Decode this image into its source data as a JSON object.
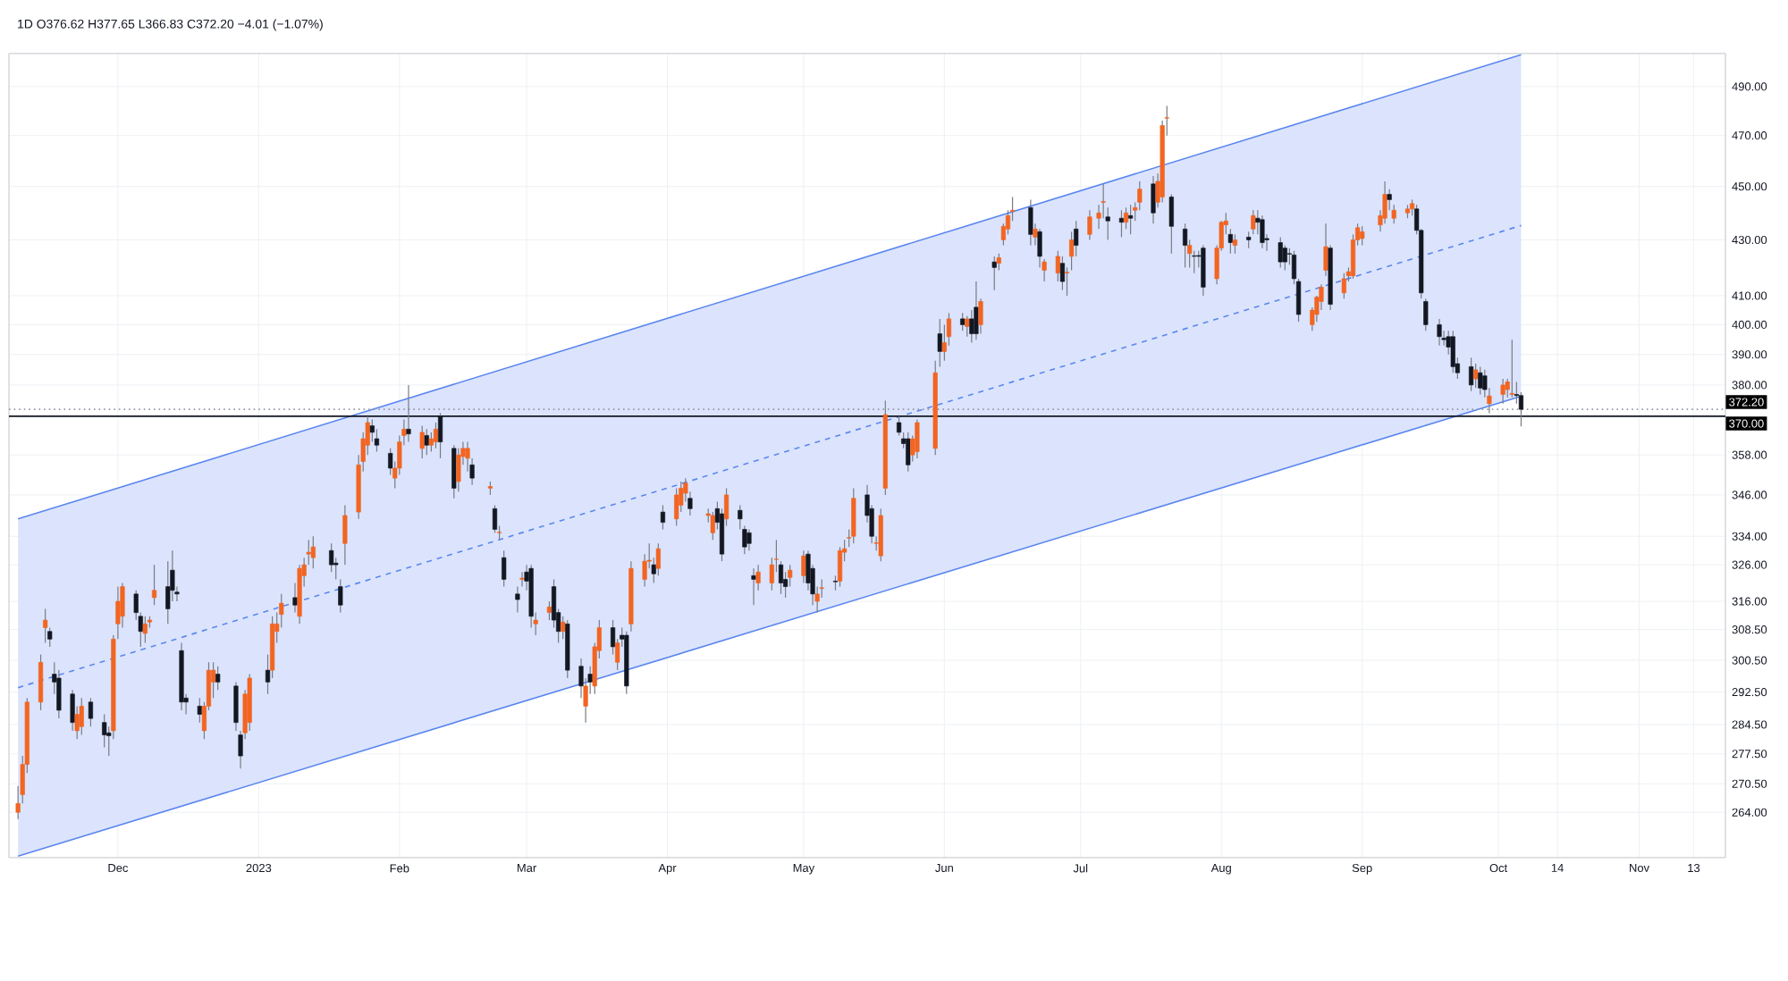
{
  "chart_data": {
    "type": "candlestick",
    "title": "1D O376.62 H377.65 L366.83 C372.20 −4.01 (−1.07%)",
    "log": "y",
    "grid": true,
    "colors": [
      "#f26522",
      "#f26522",
      "#f26522",
      "#f26522",
      "#f26522",
      "#131722",
      "#131722",
      "#131722",
      "#131722",
      "#f26522",
      "#f26522",
      "#131722",
      "#131722",
      "#131722",
      "#f26522",
      "#f26522",
      "#f26522",
      "#131722",
      "#131722",
      "#f26522",
      "#f26522",
      "#f26522",
      "#131722",
      "#131722",
      "#131722",
      "#131722",
      "#131722",
      "#131722",
      "#f26522",
      "#f26522",
      "#f26522",
      "#131722",
      "#131722",
      "#131722",
      "#f26522",
      "#f26522",
      "#131722",
      "#f26522",
      "#f26522",
      "#f26522",
      "#131722",
      "#f26522",
      "#f26522",
      "#f26522",
      "#f26522",
      "#131722",
      "#131722",
      "#131722",
      "#f26522",
      "#f26522",
      "#f26522",
      "#f26522",
      "#131722",
      "#131722",
      "#131722",
      "#f26522",
      "#f26522",
      "#f26522",
      "#131722",
      "#f26522",
      "#131722",
      "#f26522",
      "#f26522",
      "#131722",
      "#131722",
      "#f26522",
      "#f26522",
      "#f26522",
      "#131722",
      "#f26522",
      "#131722",
      "#f26522",
      "#131722",
      "#131722",
      "#f26522",
      "#131722",
      "#131722",
      "#f26522",
      "#f26522",
      "#131722",
      "#131722",
      "#f26522",
      "#131722",
      "#131722",
      "#f26522",
      "#131722",
      "#f26522",
      "#f26522",
      "#131722",
      "#f26522",
      "#131722",
      "#131722",
      "#f26522",
      "#f26522",
      "#f26522",
      "#131722",
      "#f26522",
      "#131722",
      "#f26522",
      "#f26522",
      "#f26522",
      "#131722",
      "#f26522",
      "#f26522",
      "#131722",
      "#131722",
      "#f26522",
      "#131722",
      "#131722",
      "#131722",
      "#131722",
      "#f26522",
      "#f26522",
      "#f26522",
      "#131722",
      "#131722",
      "#f26522",
      "#f26522",
      "#131722",
      "#131722",
      "#f26522",
      "#f26522",
      "#131722",
      "#f26522",
      "#f26522",
      "#f26522",
      "#f26522",
      "#131722",
      "#131722",
      "#f26522",
      "#f26522",
      "#f26522",
      "#131722",
      "#131722",
      "#131722",
      "#f26522",
      "#f26522",
      "#f26522",
      "#131722",
      "#f26522",
      "#f26522",
      "#131722",
      "#f26522",
      "#131722",
      "#131722",
      "#f26522",
      "#131722",
      "#f26522",
      "#f26522",
      "#f26522",
      "#f26522",
      "#131722",
      "#f26522",
      "#131722",
      "#f26522",
      "#f26522",
      "#131722",
      "#f26522",
      "#f26522",
      "#131722",
      "#f26522",
      "#f26522",
      "#f26522",
      "#131722",
      "#131722",
      "#f26522",
      "#131722",
      "#f26522",
      "#f26522",
      "#131722",
      "#f26522",
      "#f26522",
      "#f26522",
      "#131722",
      "#131722",
      "#f26522",
      "#131722",
      "#131722",
      "#131722",
      "#f26522",
      "#f26522",
      "#f26522",
      "#131722",
      "#f26522",
      "#131722",
      "#f26522",
      "#131722",
      "#131722",
      "#131722",
      "#131722",
      "#131722",
      "#131722",
      "#131722",
      "#131722",
      "#f26522",
      "#f26522",
      "#f26522",
      "#f26522",
      "#131722",
      "#f26522",
      "#f26522",
      "#f26522",
      "#f26522",
      "#f26522",
      "#f26522",
      "#f26522",
      "#131722",
      "#f26522",
      "#f26522",
      "#f26522",
      "#131722",
      "#131722",
      "#131722",
      "#131722",
      "#131722",
      "#131722",
      "#131722",
      "#131722",
      "#131722",
      "#f26522",
      "#131722",
      "#131722",
      "#f26522",
      "#f26522",
      "#f26522",
      "#f26522",
      "#131722",
      "#131722"
    ],
    "x": [
      "2022-11-09",
      "2022-11-10",
      "2022-11-11",
      "2022-11-14",
      "2022-11-15",
      "2022-11-16",
      "2022-11-17",
      "2022-11-18",
      "2022-11-21",
      "2022-11-22",
      "2022-11-23",
      "2022-11-25",
      "2022-11-28",
      "2022-11-29",
      "2022-11-30",
      "2022-12-01",
      "2022-12-02",
      "2022-12-05",
      "2022-12-06",
      "2022-12-07",
      "2022-12-08",
      "2022-12-09",
      "2022-12-12",
      "2022-12-13",
      "2022-12-14",
      "2022-12-15",
      "2022-12-16",
      "2022-12-19",
      "2022-12-20",
      "2022-12-21",
      "2022-12-22",
      "2022-12-23",
      "2022-12-27",
      "2022-12-28",
      "2022-12-29",
      "2022-12-30",
      "2023-01-03",
      "2023-01-04",
      "2023-01-05",
      "2023-01-06",
      "2023-01-09",
      "2023-01-10",
      "2023-01-11",
      "2023-01-12",
      "2023-01-13",
      "2023-01-17",
      "2023-01-18",
      "2023-01-19",
      "2023-01-20",
      "2023-01-23",
      "2023-01-24",
      "2023-01-25",
      "2023-01-26",
      "2023-01-27",
      "2023-01-30",
      "2023-01-31",
      "2023-02-01",
      "2023-02-02",
      "2023-02-03",
      "2023-02-06",
      "2023-02-07",
      "2023-02-08",
      "2023-02-09",
      "2023-02-10",
      "2023-02-13",
      "2023-02-14",
      "2023-02-15",
      "2023-02-16",
      "2023-02-17",
      "2023-02-21",
      "2023-02-22",
      "2023-02-23",
      "2023-02-24",
      "2023-02-27",
      "2023-02-28",
      "2023-03-01",
      "2023-03-02",
      "2023-03-03",
      "2023-03-06",
      "2023-03-07",
      "2023-03-08",
      "2023-03-09",
      "2023-03-10",
      "2023-03-13",
      "2023-03-14",
      "2023-03-15",
      "2023-03-16",
      "2023-03-17",
      "2023-03-20",
      "2023-03-21",
      "2023-03-22",
      "2023-03-23",
      "2023-03-24",
      "2023-03-27",
      "2023-03-28",
      "2023-03-29",
      "2023-03-30",
      "2023-03-31",
      "2023-04-03",
      "2023-04-04",
      "2023-04-05",
      "2023-04-06",
      "2023-04-10",
      "2023-04-11",
      "2023-04-12",
      "2023-04-13",
      "2023-04-14",
      "2023-04-17",
      "2023-04-18",
      "2023-04-19",
      "2023-04-20",
      "2023-04-21",
      "2023-04-24",
      "2023-04-25",
      "2023-04-26",
      "2023-04-27",
      "2023-04-28",
      "2023-05-01",
      "2023-05-02",
      "2023-05-03",
      "2023-05-04",
      "2023-05-05",
      "2023-05-08",
      "2023-05-09",
      "2023-05-10",
      "2023-05-11",
      "2023-05-12",
      "2023-05-15",
      "2023-05-16",
      "2023-05-17",
      "2023-05-18",
      "2023-05-19",
      "2023-05-22",
      "2023-05-23",
      "2023-05-24",
      "2023-05-25",
      "2023-05-26",
      "2023-05-30",
      "2023-05-31",
      "2023-06-01",
      "2023-06-02",
      "2023-06-05",
      "2023-06-06",
      "2023-06-07",
      "2023-06-08",
      "2023-06-09",
      "2023-06-12",
      "2023-06-13",
      "2023-06-14",
      "2023-06-15",
      "2023-06-16",
      "2023-06-20",
      "2023-06-21",
      "2023-06-22",
      "2023-06-23",
      "2023-06-26",
      "2023-06-27",
      "2023-06-28",
      "2023-06-29",
      "2023-06-30",
      "2023-07-03",
      "2023-07-05",
      "2023-07-06",
      "2023-07-07",
      "2023-07-10",
      "2023-07-11",
      "2023-07-12",
      "2023-07-13",
      "2023-07-14",
      "2023-07-17",
      "2023-07-18",
      "2023-07-19",
      "2023-07-20",
      "2023-07-21",
      "2023-07-24",
      "2023-07-25",
      "2023-07-26",
      "2023-07-27",
      "2023-07-28",
      "2023-07-31",
      "2023-08-01",
      "2023-08-02",
      "2023-08-03",
      "2023-08-04",
      "2023-08-07",
      "2023-08-08",
      "2023-08-09",
      "2023-08-10",
      "2023-08-11",
      "2023-08-14",
      "2023-08-15",
      "2023-08-16",
      "2023-08-17",
      "2023-08-18",
      "2023-08-21",
      "2023-08-22",
      "2023-08-23",
      "2023-08-24",
      "2023-08-25",
      "2023-08-28",
      "2023-08-29",
      "2023-08-30",
      "2023-08-31",
      "2023-09-01",
      "2023-09-05",
      "2023-09-06",
      "2023-09-07",
      "2023-09-08",
      "2023-09-11",
      "2023-09-12",
      "2023-09-13",
      "2023-09-14",
      "2023-09-15",
      "2023-09-18",
      "2023-09-19",
      "2023-09-20",
      "2023-09-21",
      "2023-09-22",
      "2023-09-25",
      "2023-09-26",
      "2023-09-27",
      "2023-09-28",
      "2023-09-29",
      "2023-10-02",
      "2023-10-03",
      "2023-10-04",
      "2023-10-05",
      "2023-10-06"
    ],
    "ohlc": [
      [
        264,
        270,
        262.5,
        266
      ],
      [
        268,
        277,
        266,
        275
      ],
      [
        275,
        291,
        273,
        290
      ],
      [
        290,
        302,
        288,
        300
      ],
      [
        309,
        314,
        305,
        311
      ],
      [
        308,
        309,
        304,
        306
      ],
      [
        297,
        300,
        292,
        295
      ],
      [
        296,
        298,
        286,
        288
      ],
      [
        292,
        293,
        283,
        285
      ],
      [
        283,
        289,
        281,
        287
      ],
      [
        284,
        291,
        282,
        289
      ],
      [
        290,
        291,
        284,
        286
      ],
      [
        285,
        287,
        279,
        282
      ],
      [
        282.5,
        284,
        277,
        281.8
      ],
      [
        283,
        307,
        281,
        306
      ],
      [
        310,
        320,
        306,
        316
      ],
      [
        312,
        321,
        309,
        320
      ],
      [
        318,
        319,
        311,
        313
      ],
      [
        312,
        313,
        304,
        308
      ],
      [
        307.5,
        312,
        305,
        310
      ],
      [
        310.5,
        312,
        309,
        311
      ],
      [
        317,
        326,
        315,
        319
      ],
      [
        320,
        327,
        310,
        314
      ],
      [
        324.5,
        330,
        316,
        319
      ],
      [
        318.5,
        320,
        316,
        318
      ],
      [
        303,
        305,
        288,
        290
      ],
      [
        291,
        292,
        287,
        290
      ],
      [
        289,
        291,
        285,
        287
      ],
      [
        283,
        290,
        281,
        289
      ],
      [
        289,
        300,
        288,
        298
      ],
      [
        295,
        300,
        291,
        298
      ],
      [
        297,
        299,
        293,
        295
      ],
      [
        294,
        295,
        283,
        285
      ],
      [
        282,
        283,
        274,
        277
      ],
      [
        282.5,
        293,
        281,
        292
      ],
      [
        285,
        297,
        283,
        296
      ],
      [
        298,
        302,
        292,
        295
      ],
      [
        298,
        312,
        296,
        310
      ],
      [
        308,
        313,
        305,
        310
      ],
      [
        312.5,
        318,
        309,
        315.5
      ],
      [
        317,
        321,
        313,
        315
      ],
      [
        312,
        326,
        310,
        325
      ],
      [
        323,
        328,
        320,
        326
      ],
      [
        329,
        333,
        326,
        329.5
      ],
      [
        328,
        334,
        325,
        331
      ],
      [
        330,
        332,
        324,
        326
      ],
      [
        326.5,
        328,
        322,
        326
      ],
      [
        320,
        322,
        313,
        315
      ],
      [
        332,
        343,
        326,
        340
      ],
      [
        341,
        358,
        339,
        355
      ],
      [
        356,
        365,
        353,
        363
      ],
      [
        361,
        370,
        358,
        368
      ],
      [
        367,
        369,
        362,
        365
      ],
      [
        363,
        366,
        359,
        361
      ],
      [
        358.5,
        360,
        352,
        354
      ],
      [
        351,
        356,
        348,
        354
      ],
      [
        354,
        364,
        352,
        362
      ],
      [
        364,
        369,
        361,
        366
      ],
      [
        366,
        380,
        362,
        364.5
      ],
      [
        360,
        367,
        357,
        365
      ],
      [
        364,
        366,
        358,
        361
      ],
      [
        361,
        365,
        359,
        363
      ],
      [
        362,
        368,
        360,
        366
      ],
      [
        370,
        371,
        357,
        362
      ],
      [
        360,
        361,
        345,
        348
      ],
      [
        350,
        360,
        347,
        358
      ],
      [
        357.5,
        362,
        355,
        360
      ],
      [
        357,
        362,
        353,
        360
      ],
      [
        355,
        357,
        349,
        351
      ],
      [
        348,
        350,
        346,
        348.5
      ],
      [
        342,
        343,
        335,
        336
      ],
      [
        335,
        337,
        333,
        335.2
      ],
      [
        328,
        330,
        320,
        322
      ],
      [
        318,
        320,
        313,
        316.5
      ],
      [
        322,
        324,
        320,
        322.3
      ],
      [
        324,
        326,
        319,
        321.5
      ],
      [
        325,
        326,
        309,
        312
      ],
      [
        310,
        313,
        307,
        311
      ],
      [
        313,
        316,
        311,
        314.5
      ],
      [
        320,
        322,
        309,
        311
      ],
      [
        313,
        314,
        305,
        308
      ],
      [
        308,
        312,
        306,
        310.5
      ],
      [
        310,
        311,
        296,
        298
      ],
      [
        299,
        301,
        291,
        294
      ],
      [
        289,
        296,
        285,
        294
      ],
      [
        297,
        299,
        292,
        295
      ],
      [
        294,
        305,
        292,
        304
      ],
      [
        303,
        311,
        301,
        309
      ],
      [
        309,
        311,
        302,
        304
      ],
      [
        300,
        306,
        298,
        305
      ],
      [
        307,
        309,
        304,
        306
      ],
      [
        307,
        308,
        292,
        294
      ],
      [
        310,
        327,
        308,
        325
      ],
      [
        322,
        329,
        320,
        327
      ],
      [
        327,
        332,
        325,
        327.3
      ],
      [
        326,
        328,
        321,
        323.5
      ],
      [
        325,
        332,
        323,
        330.5
      ],
      [
        341,
        343,
        336,
        338
      ],
      [
        339,
        348,
        337,
        346
      ],
      [
        343,
        350,
        341,
        348
      ],
      [
        346.5,
        351,
        344,
        349.5
      ],
      [
        345,
        347,
        340,
        342
      ],
      [
        340,
        342,
        338,
        340.5
      ],
      [
        335,
        341,
        333,
        340
      ],
      [
        342,
        344,
        336,
        338
      ],
      [
        340.5,
        342,
        327,
        329
      ],
      [
        339,
        348,
        337,
        346
      ],
      [
        341.5,
        343,
        336,
        339
      ],
      [
        336,
        337,
        329,
        331
      ],
      [
        335,
        336,
        330,
        332
      ],
      [
        323,
        325,
        315,
        322
      ],
      [
        321,
        326,
        319,
        324
      ],
      [
        321,
        328,
        319,
        326
      ],
      [
        327.5,
        333,
        324,
        327.6
      ],
      [
        326,
        327,
        318,
        321
      ],
      [
        322,
        324,
        317,
        320
      ],
      [
        322.5,
        326,
        320,
        324.5
      ],
      [
        323,
        330,
        321,
        328.5
      ],
      [
        329,
        330,
        319,
        321
      ],
      [
        325,
        326,
        315,
        318
      ],
      [
        316,
        320,
        313,
        318
      ],
      [
        319.5,
        322,
        317,
        319.7
      ],
      [
        321.5,
        323,
        319,
        321.3
      ],
      [
        321.5,
        331,
        320,
        330
      ],
      [
        329.5,
        333,
        327,
        330.5
      ],
      [
        333.5,
        336,
        331,
        333.7
      ],
      [
        334,
        348,
        332,
        345
      ],
      [
        346,
        349,
        338,
        340
      ],
      [
        342,
        343,
        332,
        334
      ],
      [
        332,
        334,
        330,
        332.2
      ],
      [
        328.5,
        342,
        327,
        340
      ],
      [
        348,
        375,
        346,
        370.5
      ],
      [
        368,
        370,
        364,
        365
      ],
      [
        363,
        365,
        360,
        361.5
      ],
      [
        363,
        365,
        353,
        355
      ],
      [
        358,
        364,
        356,
        363
      ],
      [
        359,
        369,
        357,
        368
      ],
      [
        360,
        388,
        358,
        384
      ],
      [
        397,
        402,
        386,
        391
      ],
      [
        391,
        400,
        388,
        394
      ],
      [
        396,
        404,
        393,
        402
      ],
      [
        402,
        404,
        398,
        400
      ],
      [
        399.5,
        403,
        396,
        402
      ],
      [
        402,
        405,
        394,
        397
      ],
      [
        406,
        415,
        395,
        397
      ],
      [
        400,
        409,
        397,
        408
      ],
      [
        422,
        424,
        412,
        420
      ],
      [
        421.5,
        425,
        419,
        423.5
      ],
      [
        430,
        436,
        428,
        435
      ],
      [
        434,
        441,
        432,
        439
      ],
      [
        440.5,
        446,
        437,
        441
      ],
      [
        442,
        445,
        428,
        432
      ],
      [
        431,
        436,
        428,
        434
      ],
      [
        433,
        434,
        420,
        424
      ],
      [
        419,
        423,
        415,
        422
      ],
      [
        418,
        426,
        415,
        424
      ],
      [
        421.5,
        424,
        412,
        415
      ],
      [
        418,
        420,
        410,
        418.3
      ],
      [
        424,
        433,
        419,
        430
      ],
      [
        434,
        437,
        424,
        428
      ],
      [
        432,
        441,
        430,
        438.5
      ],
      [
        438,
        443,
        434,
        440
      ],
      [
        444,
        451,
        438,
        444.3
      ],
      [
        438.5,
        442,
        430,
        437
      ],
      [
        438,
        441,
        431,
        436.5
      ],
      [
        436.5,
        442,
        434,
        440
      ],
      [
        439,
        443,
        432,
        438
      ],
      [
        441,
        444,
        437,
        442
      ],
      [
        444,
        452,
        441,
        449
      ],
      [
        451,
        454,
        436,
        440
      ],
      [
        444,
        455,
        442,
        452
      ],
      [
        446,
        476,
        444,
        474
      ],
      [
        477,
        482,
        470,
        477.2
      ],
      [
        446,
        447,
        425,
        435
      ],
      [
        434,
        436,
        420,
        428
      ],
      [
        425,
        430,
        420,
        428
      ],
      [
        424.2,
        426,
        418,
        424
      ],
      [
        424.3,
        426,
        420,
        424
      ],
      [
        427,
        428,
        410,
        413
      ],
      [
        416,
        428,
        414,
        427
      ],
      [
        427,
        437,
        426,
        436.5
      ],
      [
        435.5,
        440,
        432,
        437
      ],
      [
        432,
        434,
        425,
        429
      ],
      [
        428,
        432,
        425,
        430
      ],
      [
        431,
        433,
        427,
        430
      ],
      [
        434,
        441,
        432,
        439
      ],
      [
        438,
        441,
        432,
        436.5
      ],
      [
        437.5,
        439,
        427,
        429
      ],
      [
        430.5,
        432,
        426,
        430
      ],
      [
        429,
        431,
        420,
        422
      ],
      [
        427,
        428,
        419,
        422
      ],
      [
        425,
        427,
        421,
        424.8
      ],
      [
        424.5,
        426,
        414,
        416
      ],
      [
        415,
        416,
        401,
        403.5
      ],
      [
        400,
        406,
        398,
        405
      ],
      [
        403.5,
        410,
        401,
        409.5
      ],
      [
        408,
        414,
        405,
        413
      ],
      [
        419,
        436,
        417,
        427.5
      ],
      [
        427,
        428,
        405,
        407
      ],
      [
        411,
        418,
        409,
        416
      ],
      [
        417,
        420,
        415,
        418.5
      ],
      [
        417,
        432,
        416,
        430
      ],
      [
        430,
        436,
        428,
        434.5
      ],
      [
        430.5,
        435,
        428,
        433
      ],
      [
        435.5,
        441,
        433,
        439
      ],
      [
        438,
        452,
        436,
        447
      ],
      [
        447,
        449,
        441,
        445
      ],
      [
        438,
        443,
        436,
        441
      ],
      [
        440,
        443,
        438,
        441.5
      ],
      [
        441.5,
        445,
        439,
        443.5
      ],
      [
        441.5,
        443,
        432,
        433.5
      ],
      [
        433.5,
        434,
        409,
        411
      ],
      [
        408,
        409,
        398,
        400
      ],
      [
        400,
        402,
        393,
        396
      ],
      [
        395.5,
        398,
        393,
        395
      ],
      [
        396,
        398,
        390,
        392.5
      ],
      [
        396,
        398,
        384,
        386
      ],
      [
        387,
        389,
        382,
        384
      ],
      [
        386,
        389,
        378,
        380
      ],
      [
        382,
        387,
        379,
        385
      ],
      [
        384,
        386,
        377,
        379
      ],
      [
        383,
        385,
        376,
        378.5
      ],
      [
        374,
        379,
        371,
        376.5
      ],
      [
        377,
        382,
        374,
        380
      ],
      [
        378.5,
        382,
        376,
        381
      ],
      [
        377,
        395,
        376,
        377.3
      ],
      [
        377,
        381,
        374,
        376.6
      ],
      [
        376.62,
        377.65,
        366.83,
        372.2
      ]
    ],
    "series": [
      {
        "type": "line",
        "color": "#5b86f0",
        "line_style": "dashed",
        "x": [
          "2022-11-09",
          "2023-10-06"
        ],
        "values": [
          293.6,
          435.3
        ],
        "lower": [
          254.3,
          376.4
        ],
        "upper": [
          339,
          503.5
        ]
      },
      {
        "type": "line",
        "color": "#5b86f0",
        "line_style": "solid",
        "x": [
          "2022-11-09",
          "2023-10-06"
        ],
        "values": [
          339,
          503.5
        ]
      },
      {
        "type": "line",
        "color": "#5b86f0",
        "line_style": "solid",
        "x": [
          "2022-11-09",
          "2023-10-06"
        ],
        "values": [
          254.3,
          376.4
        ]
      }
    ],
    "ref_lines": [
      {
        "axis": "y",
        "value": 372.2,
        "label": "372.20",
        "color": "#9598a1",
        "line_style": "dotted"
      },
      {
        "axis": "y",
        "value": 370,
        "label": "370.00",
        "color": "#131722",
        "line_style": "solid"
      }
    ],
    "xlim": [
      "2022-11-07",
      "2023-11-20"
    ],
    "ylim": [
      254,
      504
    ],
    "xticks": [
      {
        "value": "2022-12-01",
        "label": "Dec"
      },
      {
        "value": "2023-01-01",
        "label": "2023"
      },
      {
        "value": "2023-02-01",
        "label": "Feb"
      },
      {
        "value": "2023-03-01",
        "label": "Mar"
      },
      {
        "value": "2023-04-01",
        "label": "Apr"
      },
      {
        "value": "2023-05-01",
        "label": "May"
      },
      {
        "value": "2023-06-01",
        "label": "Jun"
      },
      {
        "value": "2023-07-01",
        "label": "Jul"
      },
      {
        "value": "2023-08-01",
        "label": "Aug"
      },
      {
        "value": "2023-09-01",
        "label": "Sep"
      },
      {
        "value": "2023-10-01",
        "label": "Oct"
      },
      {
        "value": "2023-10-14",
        "label": "14"
      },
      {
        "value": "2023-11-01",
        "label": "Nov"
      },
      {
        "value": "2023-11-13",
        "label": "13"
      }
    ],
    "yticks": [
      {
        "value": 490,
        "label": "490.00"
      },
      {
        "value": 470,
        "label": "470.00"
      },
      {
        "value": 450,
        "label": "450.00"
      },
      {
        "value": 430,
        "label": "430.00"
      },
      {
        "value": 410,
        "label": "410.00"
      },
      {
        "value": 400,
        "label": "400.00"
      },
      {
        "value": 390,
        "label": "390.00"
      },
      {
        "value": 380,
        "label": "380.00"
      },
      {
        "value": 358,
        "label": "358.00"
      },
      {
        "value": 346,
        "label": "346.00"
      },
      {
        "value": 334,
        "label": "334.00"
      },
      {
        "value": 326,
        "label": "326.00"
      },
      {
        "value": 316,
        "label": "316.00"
      },
      {
        "value": 308.5,
        "label": "308.50"
      },
      {
        "value": 300.5,
        "label": "300.50"
      },
      {
        "value": 292.5,
        "label": "292.50"
      },
      {
        "value": 284.5,
        "label": "284.50"
      },
      {
        "value": 277.5,
        "label": "277.50"
      },
      {
        "value": 270.5,
        "label": "270.50"
      },
      {
        "value": 264,
        "label": "264.00"
      }
    ]
  }
}
